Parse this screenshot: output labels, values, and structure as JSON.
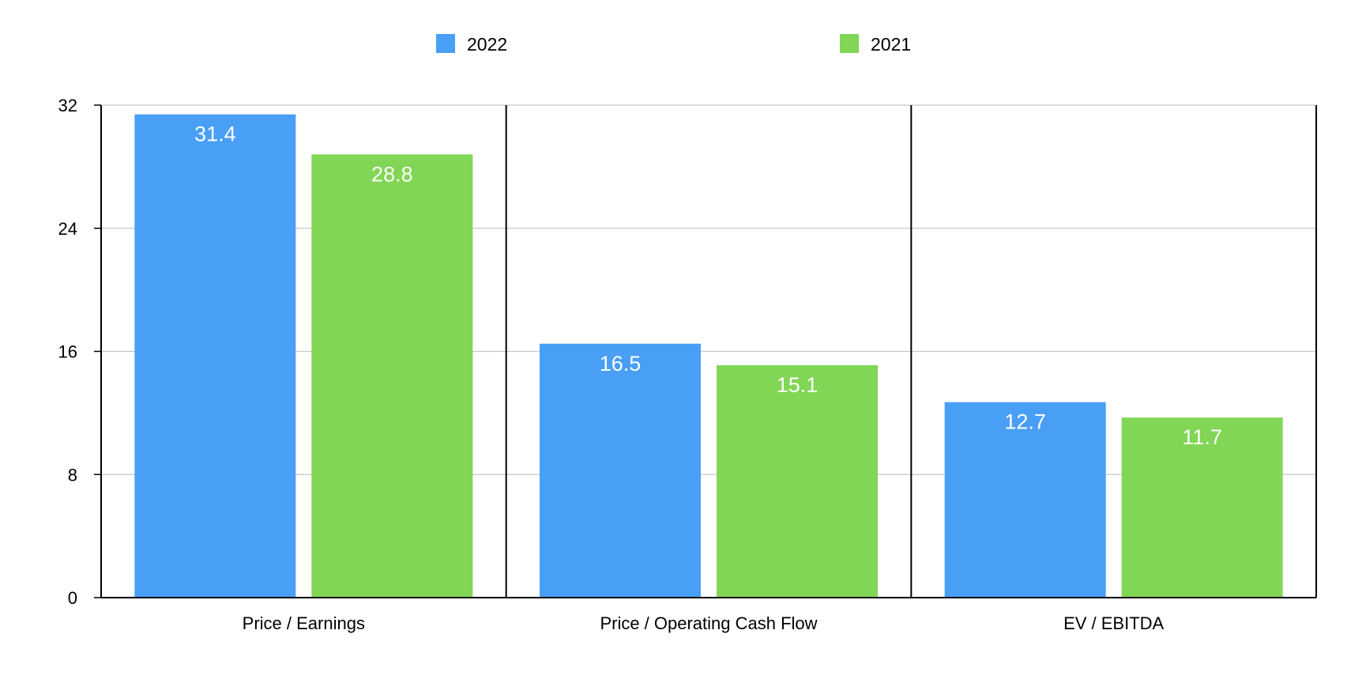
{
  "chart_data": {
    "type": "bar",
    "categories": [
      "Price / Earnings",
      "Price / Operating Cash Flow",
      "EV / EBITDA"
    ],
    "series": [
      {
        "name": "2022",
        "values": [
          31.4,
          16.5,
          12.7
        ],
        "color": "#499ff5"
      },
      {
        "name": "2021",
        "values": [
          28.8,
          15.1,
          11.7
        ],
        "color": "#82d655"
      }
    ],
    "yticks": [
      0,
      8,
      16,
      24,
      32
    ],
    "ylim": [
      0,
      32
    ],
    "grid": true,
    "legend": "top-center",
    "data_labels": true
  }
}
